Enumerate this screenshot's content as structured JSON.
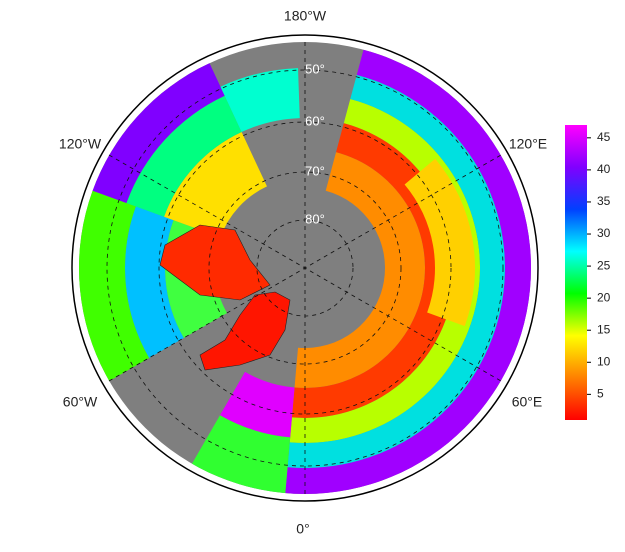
{
  "map": {
    "lon_labels": [
      "180°W",
      "120°E",
      "60°E",
      "0°",
      "60°W",
      "120°W"
    ],
    "lat_labels": [
      "50°",
      "60°",
      "70°",
      "80°"
    ]
  },
  "colorbar": {
    "range": [
      1,
      47
    ],
    "ticks": [
      5,
      10,
      15,
      20,
      25,
      30,
      35,
      40,
      45
    ],
    "colors": [
      "#ff0000",
      "#ff8000",
      "#ffff00",
      "#00ff00",
      "#00ffff",
      "#0040ff",
      "#8000ff",
      "#ff00ff"
    ]
  }
}
